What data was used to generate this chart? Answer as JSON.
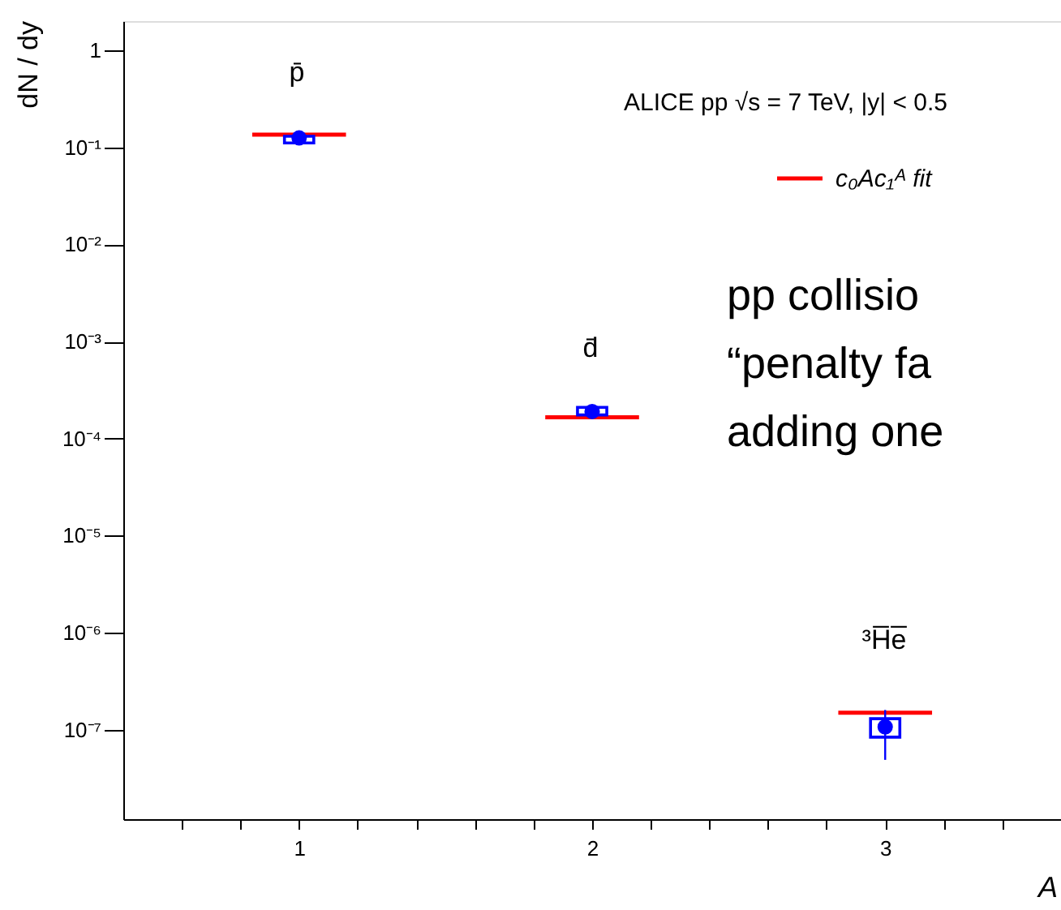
{
  "chart_data": {
    "type": "scatter",
    "title": "ALICE pp √s = 7 TeV, |y| < 0.5",
    "xlabel": "A",
    "ylabel": "dN / dy",
    "x": [
      1,
      2,
      3
    ],
    "series": [
      {
        "type": "line",
        "color": "#ff0000",
        "name": "c₀Ac₁ᴬ fit",
        "x": [
          0.84,
          1.16
        ],
        "values": [
          0.135,
          0.135
        ]
      },
      {
        "type": "line",
        "color": "#ff0000",
        "x": [
          1.84,
          2.16
        ],
        "values": [
          0.000166,
          0.000166
        ]
      },
      {
        "type": "line",
        "color": "#ff0000",
        "x": [
          2.84,
          3.16
        ],
        "values": [
          1.5e-07,
          1.5e-07
        ]
      },
      {
        "type": "bar",
        "color": "#0000ff",
        "base": [
          0.111,
          0.000175,
          8.4e-08
        ],
        "values": [
          0.019,
          3.5e-05,
          4.6e-08
        ]
      },
      {
        "color": "#0000ff",
        "marker": "circle",
        "values": [
          0.125,
          0.00019,
          1.07e-07
        ],
        "errors": [
          null,
          null,
          [
            4.9e-08,
            1.6e-07
          ]
        ]
      }
    ],
    "xlim": [
      0.4,
      3.6
    ],
    "xticks": [
      {
        "value": 0.6,
        "label": null
      },
      {
        "value": 0.8,
        "label": null
      },
      1,
      {
        "value": 1.2,
        "label": null
      },
      {
        "value": 1.4,
        "label": null
      },
      {
        "value": 1.6,
        "label": null
      },
      {
        "value": 1.8,
        "label": null
      },
      2,
      {
        "value": 2.2,
        "label": null
      },
      {
        "value": 2.4,
        "label": null
      },
      {
        "value": 2.6,
        "label": null
      },
      {
        "value": 2.8,
        "label": null
      },
      3,
      {
        "value": 3.2,
        "label": null
      },
      {
        "value": 3.4,
        "label": null
      }
    ],
    "ylim": [
      1.2e-08,
      2
    ],
    "yticks": [
      1,
      {
        "value": 0.1,
        "label": "10⁻¹"
      },
      {
        "value": 0.01,
        "label": "10⁻²"
      },
      {
        "value": 0.001,
        "label": "10⁻³"
      },
      {
        "value": 0.0001,
        "label": "10⁻⁴"
      },
      {
        "value": 1e-05,
        "label": "10⁻⁵"
      },
      {
        "value": 1e-06,
        "label": "10⁻⁶"
      },
      {
        "value": 1e-07,
        "label": "10⁻⁷"
      }
    ],
    "log": "y",
    "line_style": "solid",
    "grid": false,
    "legend": "top right",
    "annotations": [
      "p̄",
      "d̄",
      "³H̅e̅",
      "pp collisio",
      "“penalty fa",
      "adding one"
    ]
  }
}
